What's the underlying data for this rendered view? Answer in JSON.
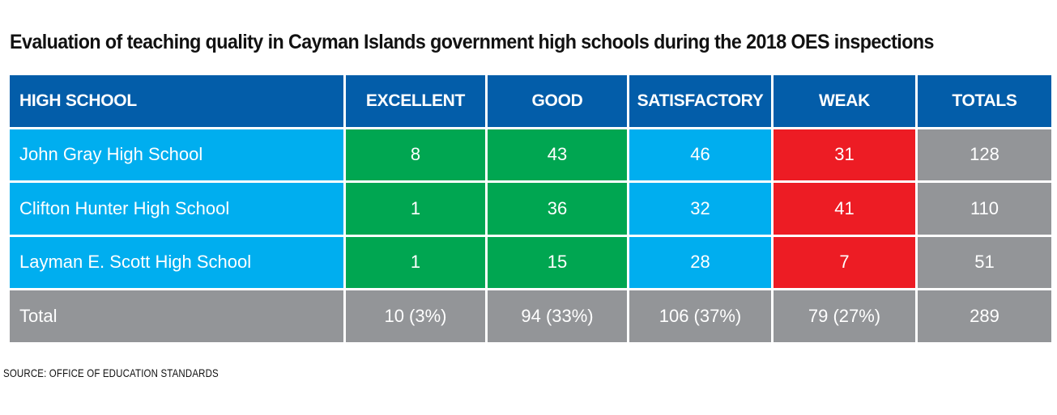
{
  "chart_data": {
    "type": "table",
    "title": "Evaluation of teaching quality in Cayman Islands government high schools during the 2018 OES inspections",
    "columns": [
      "HIGH SCHOOL",
      "EXCELLENT",
      "GOOD",
      "SATISFACTORY",
      "WEAK",
      "TOTALS"
    ],
    "rows": [
      {
        "school": "John Gray High School",
        "excellent": "8",
        "good": "43",
        "satisfactory": "46",
        "weak": "31",
        "totals": "128"
      },
      {
        "school": "Clifton Hunter High School",
        "excellent": "1",
        "good": "36",
        "satisfactory": "32",
        "weak": "41",
        "totals": "110"
      },
      {
        "school": "Layman E. Scott High School",
        "excellent": "1",
        "good": "15",
        "satisfactory": "28",
        "weak": "7",
        "totals": "51"
      }
    ],
    "total_row": {
      "label": "Total",
      "excellent": "10 (3%)",
      "good": "94 (33%)",
      "satisfactory": "106 (37%)",
      "weak": "79 (27%)",
      "totals": "289"
    },
    "source": "SOURCE: OFFICE OF EDUCATION STANDARDS",
    "colors": {
      "header": "#035da9",
      "row_label": "#00aeef",
      "excellent": "#00a651",
      "good": "#00a651",
      "satisfactory": "#00aeef",
      "weak": "#ed1c24",
      "totals": "#939598"
    }
  }
}
